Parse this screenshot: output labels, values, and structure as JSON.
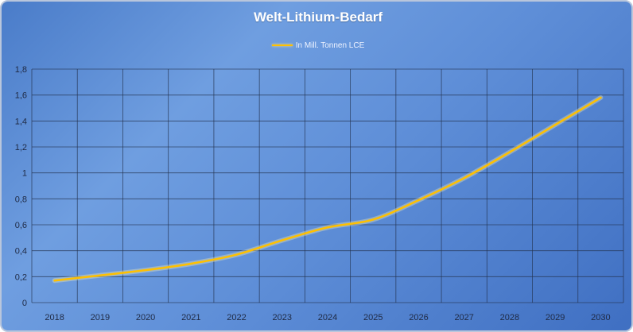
{
  "chart_data": {
    "type": "line",
    "title": "Welt-Lithium-Bedarf",
    "xlabel": "",
    "ylabel": "",
    "legend_position": "top",
    "grid": true,
    "x": [
      "2018",
      "2019",
      "2020",
      "2021",
      "2022",
      "2023",
      "2024",
      "2025",
      "2026",
      "2027",
      "2028",
      "2029",
      "2030"
    ],
    "series": [
      {
        "name": "In Mill. Tonnen LCE",
        "color": "#ffc000",
        "values": [
          0.17,
          0.21,
          0.25,
          0.3,
          0.37,
          0.48,
          0.58,
          0.64,
          0.79,
          0.96,
          1.16,
          1.37,
          1.58
        ]
      }
    ],
    "yticks": [
      "0",
      "0,2",
      "0,4",
      "0,6",
      "0,8",
      "1",
      "1,2",
      "1,4",
      "1,6",
      "1,8"
    ],
    "ylim": [
      0,
      1.8
    ]
  }
}
